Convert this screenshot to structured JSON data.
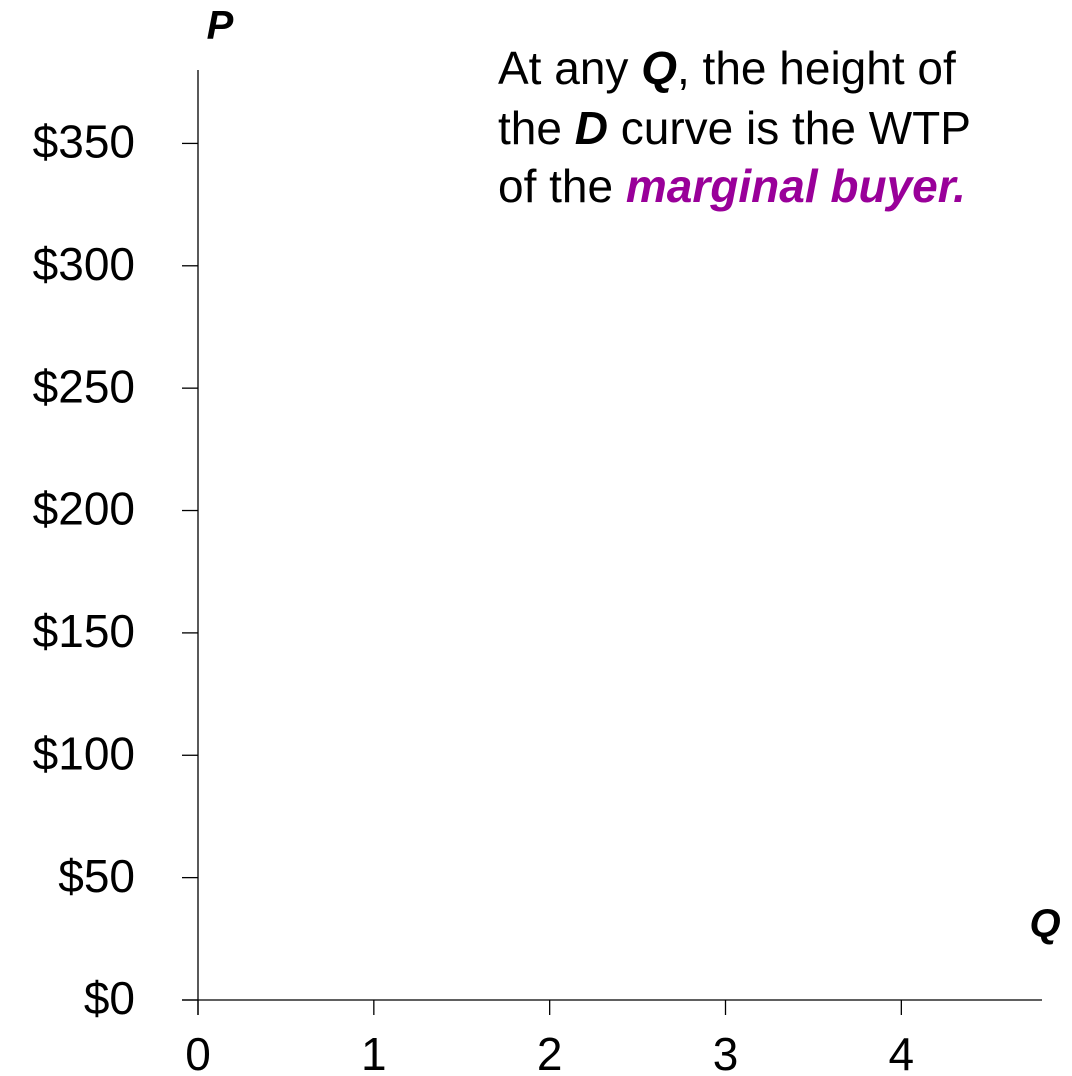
{
  "chart_data": {
    "type": "line",
    "xlabel": "Q",
    "ylabel": "P",
    "annotation": [
      [
        "At any ",
        "Q",
        ", the height of"
      ],
      [
        "the ",
        "D",
        " curve is the WTP"
      ],
      [
        "of the ",
        "marginal buyer."
      ]
    ],
    "series": [],
    "xlim": [
      0,
      4.8
    ],
    "xticks": [
      0,
      1,
      2,
      3,
      4
    ],
    "ylim": [
      0,
      380
    ],
    "yticks": [
      {
        "value": 0,
        "label": "$0"
      },
      {
        "value": 50,
        "label": "$50"
      },
      {
        "value": 100,
        "label": "$100"
      },
      {
        "value": 150,
        "label": "$150"
      },
      {
        "value": 200,
        "label": "$200"
      },
      {
        "value": 250,
        "label": "$250"
      },
      {
        "value": 300,
        "label": "$300"
      },
      {
        "value": 350,
        "label": "$350"
      }
    ],
    "grid": false
  }
}
